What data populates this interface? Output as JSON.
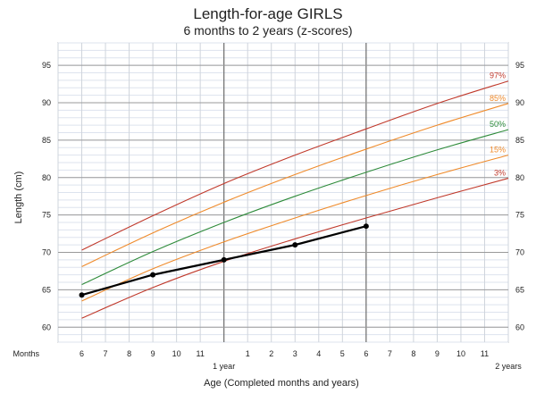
{
  "chart_data": {
    "type": "line",
    "title": "Length-for-age  GIRLS",
    "subtitle": "6 months to 2 years (z-scores)",
    "ylabel": "Length (cm)",
    "xlabel": "Age (Completed months and years)",
    "x_row_label": "Months",
    "x_unit": "months",
    "xlim": [
      5,
      24
    ],
    "ylim": [
      58,
      98
    ],
    "y_ticks": [
      60,
      65,
      70,
      75,
      80,
      85,
      90,
      95
    ],
    "x_ticks": [
      {
        "x": 6,
        "label": "6"
      },
      {
        "x": 7,
        "label": "7"
      },
      {
        "x": 8,
        "label": "8"
      },
      {
        "x": 9,
        "label": "9"
      },
      {
        "x": 10,
        "label": "10"
      },
      {
        "x": 11,
        "label": "11"
      },
      {
        "x": 13,
        "label": "1"
      },
      {
        "x": 14,
        "label": "2"
      },
      {
        "x": 15,
        "label": "3"
      },
      {
        "x": 16,
        "label": "4"
      },
      {
        "x": 17,
        "label": "5"
      },
      {
        "x": 18,
        "label": "6"
      },
      {
        "x": 19,
        "label": "7"
      },
      {
        "x": 20,
        "label": "8"
      },
      {
        "x": 21,
        "label": "9"
      },
      {
        "x": 22,
        "label": "10"
      },
      {
        "x": 23,
        "label": "11"
      }
    ],
    "x_major_labels": [
      {
        "x": 12,
        "label": "1 year"
      },
      {
        "x": 24,
        "label": "2 years"
      }
    ],
    "grid": true,
    "reference_curves": [
      {
        "name": "97%",
        "color": "#c0392b",
        "x": [
          6,
          9,
          12,
          15,
          18,
          21,
          24
        ],
        "values": [
          70.3,
          74.9,
          79.2,
          83.0,
          86.5,
          89.9,
          92.9
        ]
      },
      {
        "name": "85%",
        "color": "#ef8a2a",
        "x": [
          6,
          9,
          12,
          15,
          18,
          21,
          24
        ],
        "values": [
          68.1,
          72.6,
          76.7,
          80.4,
          83.8,
          87.0,
          89.9
        ]
      },
      {
        "name": "50%",
        "color": "#2e8b3a",
        "x": [
          6,
          9,
          12,
          15,
          18,
          21,
          24
        ],
        "values": [
          65.7,
          70.1,
          74.0,
          77.5,
          80.7,
          83.7,
          86.4
        ]
      },
      {
        "name": "15%",
        "color": "#ef8a2a",
        "x": [
          6,
          9,
          12,
          15,
          18,
          21,
          24
        ],
        "values": [
          63.5,
          67.8,
          71.4,
          74.6,
          77.6,
          80.4,
          83.0
        ]
      },
      {
        "name": "3%",
        "color": "#c0392b",
        "x": [
          6,
          9,
          12,
          15,
          18,
          21,
          24
        ],
        "values": [
          61.2,
          65.3,
          68.8,
          71.8,
          74.6,
          77.3,
          79.9
        ]
      }
    ],
    "series": [
      {
        "x": [
          6,
          9,
          12,
          15,
          18
        ],
        "values": [
          64.3,
          67.0,
          69.0,
          71.0,
          73.5
        ],
        "color": "#000000"
      }
    ]
  }
}
